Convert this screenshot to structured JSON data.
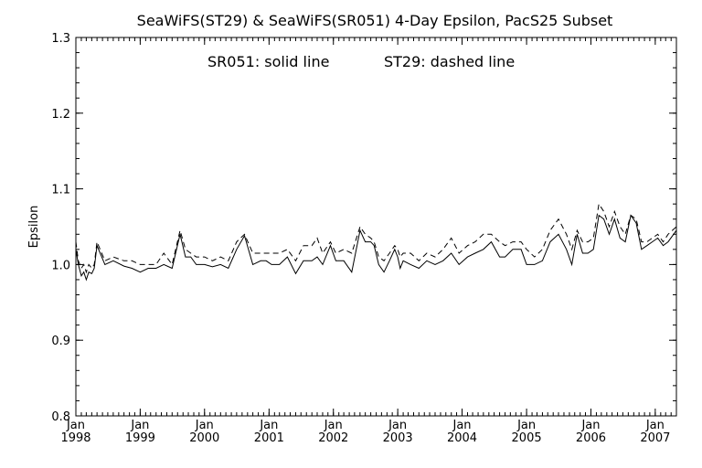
{
  "chart_data": {
    "type": "line",
    "title": "SeaWiFS(ST29) & SeaWiFS(SR051) 4-Day Epsilon, PacS25 Subset",
    "annotation_solid": "SR051: solid line",
    "annotation_dashed": "ST29: dashed line",
    "xlabel": "",
    "ylabel": "Epsilon",
    "xlim": [
      "1998-01-01",
      "2007-05-01"
    ],
    "ylim": [
      0.8,
      1.3
    ],
    "yticks": [
      "0.8",
      "0.9",
      "1.0",
      "1.1",
      "1.2",
      "1.3"
    ],
    "xticks": [
      {
        "month": "Jan",
        "year": "1998",
        "date": "1998-01-01"
      },
      {
        "month": "Jan",
        "year": "1999",
        "date": "1999-01-01"
      },
      {
        "month": "Jan",
        "year": "2000",
        "date": "2000-01-01"
      },
      {
        "month": "Jan",
        "year": "2001",
        "date": "2001-01-01"
      },
      {
        "month": "Jan",
        "year": "2002",
        "date": "2002-01-01"
      },
      {
        "month": "Jan",
        "year": "2003",
        "date": "2003-01-01"
      },
      {
        "month": "Jan",
        "year": "2004",
        "date": "2004-01-01"
      },
      {
        "month": "Jan",
        "year": "2005",
        "date": "2005-01-01"
      },
      {
        "month": "Jan",
        "year": "2006",
        "date": "2006-01-01"
      },
      {
        "month": "Jan",
        "year": "2007",
        "date": "2007-01-01"
      }
    ],
    "grid": false,
    "legend": "none",
    "series": [
      {
        "name": "SR051",
        "style": "solid",
        "color": "#000000",
        "x": [
          "1998-01-01",
          "1998-01-15",
          "1998-02-01",
          "1998-02-15",
          "1998-03-01",
          "1998-03-15",
          "1998-04-01",
          "1998-04-15",
          "1998-05-01",
          "1998-06-15",
          "1998-08-01",
          "1998-10-01",
          "1998-11-15",
          "1999-01-01",
          "1999-02-15",
          "1999-04-01",
          "1999-05-15",
          "1999-07-01",
          "1999-08-15",
          "1999-09-15",
          "1999-10-15",
          "1999-11-15",
          "2000-01-01",
          "2000-02-15",
          "2000-04-01",
          "2000-05-15",
          "2000-07-01",
          "2000-08-15",
          "2000-10-01",
          "2000-11-15",
          "2000-12-15",
          "2001-01-15",
          "2001-03-01",
          "2001-04-15",
          "2001-06-01",
          "2001-07-15",
          "2001-09-01",
          "2001-10-01",
          "2001-11-01",
          "2001-12-15",
          "2002-01-15",
          "2002-03-01",
          "2002-04-15",
          "2002-06-01",
          "2002-07-01",
          "2002-08-01",
          "2002-08-20",
          "2002-09-15",
          "2002-10-15",
          "2002-11-15",
          "2002-12-15",
          "2003-01-01",
          "2003-01-15",
          "2003-02-01",
          "2003-03-15",
          "2003-05-01",
          "2003-06-15",
          "2003-08-01",
          "2003-09-15",
          "2003-11-01",
          "2003-12-15",
          "2004-02-01",
          "2004-03-15",
          "2004-05-01",
          "2004-06-15",
          "2004-08-01",
          "2004-09-01",
          "2004-10-15",
          "2004-12-01",
          "2005-01-01",
          "2005-02-15",
          "2005-04-01",
          "2005-05-15",
          "2005-07-01",
          "2005-08-15",
          "2005-09-15",
          "2005-10-15",
          "2005-11-15",
          "2005-12-15",
          "2006-01-15",
          "2006-02-15",
          "2006-03-15",
          "2006-04-15",
          "2006-05-15",
          "2006-06-15",
          "2006-07-15",
          "2006-08-15",
          "2006-09-15",
          "2006-10-15",
          "2006-11-15",
          "2006-12-15",
          "2007-01-15",
          "2007-02-15",
          "2007-03-15",
          "2007-05-01"
        ],
        "y": [
          1.02,
          1.0,
          0.985,
          0.99,
          0.98,
          0.99,
          0.988,
          0.995,
          1.025,
          1.0,
          1.005,
          0.998,
          0.995,
          0.99,
          0.995,
          0.995,
          1.0,
          0.995,
          1.04,
          1.01,
          1.01,
          1.0,
          1.0,
          0.997,
          1.0,
          0.995,
          1.02,
          1.038,
          1.0,
          1.005,
          1.005,
          1.0,
          1.0,
          1.01,
          0.988,
          1.005,
          1.005,
          1.01,
          1.0,
          1.025,
          1.005,
          1.005,
          0.99,
          1.045,
          1.03,
          1.03,
          1.025,
          1.0,
          0.99,
          1.005,
          1.02,
          1.01,
          0.995,
          1.005,
          1.0,
          0.995,
          1.005,
          1.0,
          1.005,
          1.015,
          1.0,
          1.01,
          1.015,
          1.02,
          1.03,
          1.01,
          1.01,
          1.02,
          1.02,
          1.0,
          1.0,
          1.005,
          1.03,
          1.04,
          1.02,
          1.0,
          1.04,
          1.015,
          1.015,
          1.02,
          1.065,
          1.06,
          1.04,
          1.06,
          1.035,
          1.03,
          1.065,
          1.055,
          1.02,
          1.025,
          1.03,
          1.035,
          1.025,
          1.03,
          1.045
        ]
      },
      {
        "name": "ST29",
        "style": "dashed",
        "color": "#000000",
        "x": [
          "1998-01-01",
          "1998-01-15",
          "1998-02-01",
          "1998-02-15",
          "1998-03-01",
          "1998-03-15",
          "1998-04-01",
          "1998-04-15",
          "1998-05-01",
          "1998-06-15",
          "1998-08-01",
          "1998-10-01",
          "1998-11-15",
          "1999-01-01",
          "1999-02-15",
          "1999-04-01",
          "1999-05-15",
          "1999-07-01",
          "1999-08-15",
          "1999-09-15",
          "1999-10-15",
          "1999-11-15",
          "2000-01-01",
          "2000-02-15",
          "2000-04-01",
          "2000-05-15",
          "2000-07-01",
          "2000-08-15",
          "2000-10-01",
          "2000-11-15",
          "2000-12-15",
          "2001-01-15",
          "2001-03-01",
          "2001-04-15",
          "2001-06-01",
          "2001-07-15",
          "2001-09-01",
          "2001-10-01",
          "2001-11-01",
          "2001-12-15",
          "2002-01-15",
          "2002-03-01",
          "2002-04-15",
          "2002-06-01",
          "2002-07-01",
          "2002-08-01",
          "2002-08-20",
          "2002-09-15",
          "2002-10-15",
          "2002-11-15",
          "2002-12-15",
          "2003-01-01",
          "2003-01-15",
          "2003-02-01",
          "2003-03-15",
          "2003-05-01",
          "2003-06-15",
          "2003-08-01",
          "2003-09-15",
          "2003-11-01",
          "2003-12-15",
          "2004-02-01",
          "2004-03-15",
          "2004-05-01",
          "2004-06-15",
          "2004-08-01",
          "2004-09-01",
          "2004-10-15",
          "2004-12-01",
          "2005-01-01",
          "2005-02-15",
          "2005-04-01",
          "2005-05-15",
          "2005-07-01",
          "2005-08-15",
          "2005-09-15",
          "2005-10-15",
          "2005-11-15",
          "2005-12-15",
          "2006-01-15",
          "2006-02-15",
          "2006-03-15",
          "2006-04-15",
          "2006-05-15",
          "2006-06-15",
          "2006-07-15",
          "2006-08-15",
          "2006-09-15",
          "2006-10-15",
          "2006-11-15",
          "2006-12-15",
          "2007-01-15",
          "2007-02-15",
          "2007-03-15",
          "2007-05-01"
        ],
        "y": [
          1.03,
          1.005,
          0.995,
          1.0,
          0.99,
          1.0,
          0.995,
          1.0,
          1.03,
          1.005,
          1.01,
          1.005,
          1.005,
          1.0,
          1.0,
          1.0,
          1.015,
          1.0,
          1.045,
          1.02,
          1.015,
          1.01,
          1.01,
          1.005,
          1.01,
          1.005,
          1.03,
          1.04,
          1.015,
          1.015,
          1.015,
          1.015,
          1.015,
          1.02,
          1.005,
          1.025,
          1.025,
          1.035,
          1.015,
          1.03,
          1.015,
          1.02,
          1.015,
          1.05,
          1.04,
          1.035,
          1.03,
          1.01,
          1.005,
          1.015,
          1.025,
          1.02,
          1.01,
          1.015,
          1.015,
          1.005,
          1.015,
          1.01,
          1.02,
          1.035,
          1.015,
          1.025,
          1.03,
          1.04,
          1.04,
          1.03,
          1.025,
          1.03,
          1.03,
          1.02,
          1.01,
          1.02,
          1.045,
          1.06,
          1.04,
          1.02,
          1.045,
          1.03,
          1.03,
          1.035,
          1.08,
          1.07,
          1.05,
          1.07,
          1.05,
          1.04,
          1.065,
          1.06,
          1.03,
          1.03,
          1.035,
          1.04,
          1.03,
          1.04,
          1.05
        ]
      }
    ]
  }
}
